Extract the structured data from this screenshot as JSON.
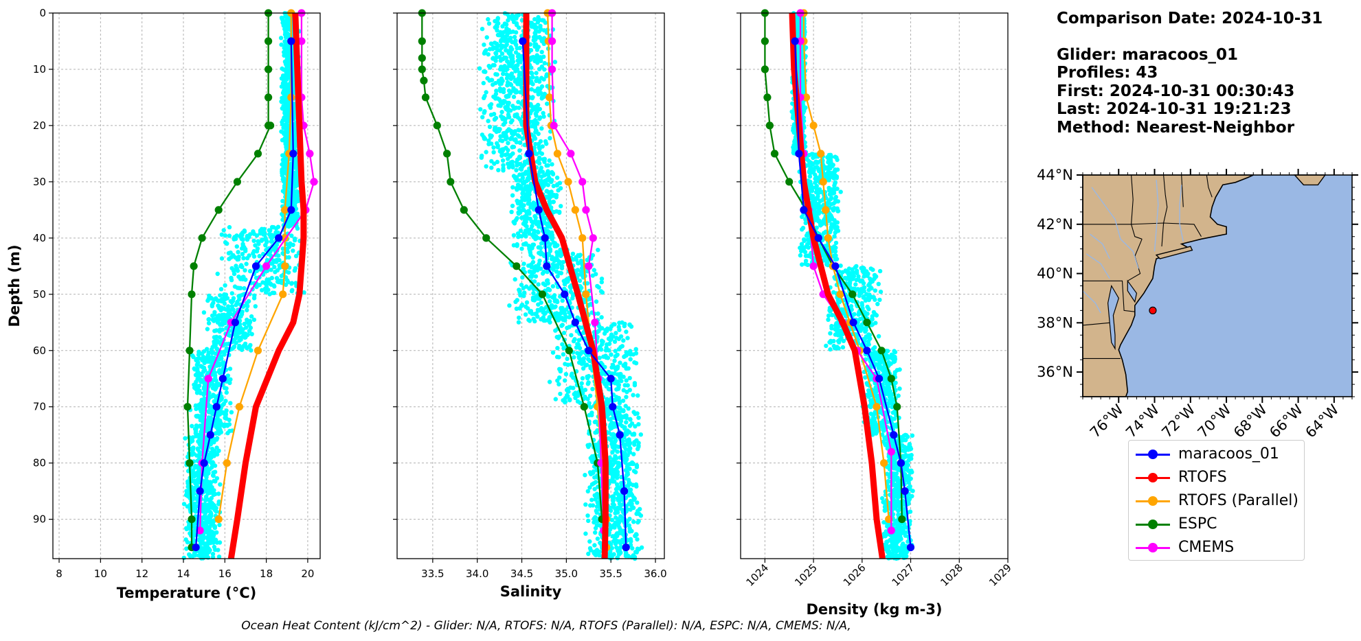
{
  "chart_data": [
    {
      "type": "line",
      "panel": "temperature",
      "xlabel": "Temperature (°C)",
      "ylabel": "Depth (m)",
      "xlim": [
        7.7,
        20.6
      ],
      "ylim": [
        97,
        0
      ],
      "xticks": [
        8,
        10,
        12,
        14,
        16,
        18,
        20
      ],
      "yticks": [
        0,
        10,
        20,
        30,
        40,
        50,
        60,
        70,
        80,
        90
      ],
      "grid": true,
      "series": [
        {
          "name": "maracoos_01",
          "color": "#0000ff",
          "x": [
            19.2,
            19.3,
            19.2,
            18.6,
            17.5,
            16.5,
            15.9,
            15.6,
            15.3,
            15.0,
            14.8,
            14.6
          ],
          "y": [
            5,
            25,
            35,
            40,
            45,
            55,
            65,
            70,
            75,
            80,
            85,
            95
          ]
        },
        {
          "name": "RTOFS",
          "color": "#ff0000",
          "x": [
            19.4,
            19.5,
            19.6,
            19.7,
            19.8,
            19.8,
            19.7,
            19.6,
            19.3,
            18.6,
            17.5,
            17.0,
            16.8,
            16.6,
            16.3
          ],
          "y": [
            0,
            10,
            20,
            30,
            35,
            40,
            45,
            50,
            55,
            60,
            70,
            80,
            85,
            90,
            97
          ]
        },
        {
          "name": "RTOFS (Parallel)",
          "color": "#ffa500",
          "x": [
            19.2,
            19.2,
            19.2,
            19.1,
            18.9,
            18.9,
            18.9,
            18.8,
            17.6,
            16.7,
            16.1,
            15.7
          ],
          "y": [
            0,
            5,
            15,
            25,
            35,
            40,
            45,
            50,
            60,
            70,
            80,
            90
          ]
        },
        {
          "name": "ESPC",
          "color": "#008000",
          "x": [
            18.1,
            18.1,
            18.1,
            18.1,
            18.1,
            18.2,
            17.6,
            16.6,
            15.7,
            14.9,
            14.5,
            14.4,
            14.3,
            14.2,
            14.3,
            14.4,
            14.4
          ],
          "y": [
            0,
            5,
            10,
            15,
            20,
            20,
            25,
            30,
            35,
            40,
            45,
            50,
            60,
            70,
            80,
            90,
            95
          ]
        },
        {
          "name": "CMEMS",
          "color": "#ff00ff",
          "x": [
            19.7,
            19.7,
            19.7,
            19.8,
            20.1,
            20.3,
            19.9,
            18.0,
            16.3,
            15.2,
            14.9,
            14.8
          ],
          "y": [
            0,
            5,
            15,
            20,
            25,
            30,
            35,
            45,
            55,
            65,
            80,
            92
          ]
        }
      ]
    },
    {
      "type": "line",
      "panel": "salinity",
      "xlabel": "Salinity",
      "xlim": [
        33.1,
        36.1
      ],
      "ylim": [
        97,
        0
      ],
      "xticks": [
        33.5,
        34.0,
        34.5,
        35.0,
        35.5,
        36.0
      ],
      "yticks": [
        0,
        10,
        20,
        30,
        40,
        50,
        60,
        70,
        80,
        90
      ],
      "grid": true,
      "series": [
        {
          "name": "maracoos_01",
          "color": "#0000ff",
          "x": [
            34.51,
            34.58,
            34.69,
            34.76,
            34.78,
            34.98,
            35.1,
            35.25,
            35.5,
            35.52,
            35.6,
            35.65,
            35.67
          ],
          "y": [
            5,
            25,
            35,
            40,
            45,
            50,
            55,
            60,
            65,
            70,
            75,
            85,
            95
          ]
        },
        {
          "name": "RTOFS",
          "color": "#ff0000",
          "x": [
            34.55,
            34.55,
            34.55,
            34.6,
            34.65,
            34.78,
            34.95,
            35.13,
            35.3,
            35.4,
            35.44,
            35.44,
            35.43
          ],
          "y": [
            0,
            10,
            20,
            25,
            30,
            35,
            40,
            50,
            60,
            70,
            80,
            90,
            97
          ]
        },
        {
          "name": "RTOFS (Parallel)",
          "color": "#ffa500",
          "x": [
            34.79,
            34.8,
            34.81,
            34.83,
            34.9,
            35.02,
            35.1,
            35.18,
            35.22,
            35.28,
            35.35,
            35.4,
            35.45,
            35.45
          ],
          "y": [
            0,
            5,
            15,
            20,
            25,
            30,
            35,
            40,
            50,
            60,
            70,
            80,
            90,
            95
          ]
        },
        {
          "name": "ESPC",
          "color": "#008000",
          "x": [
            33.38,
            33.38,
            33.38,
            33.38,
            33.4,
            33.42,
            33.55,
            33.66,
            33.7,
            33.85,
            34.1,
            34.44,
            34.73,
            35.03,
            35.2,
            35.35,
            35.4
          ],
          "y": [
            0,
            5,
            8,
            10,
            12,
            15,
            20,
            25,
            30,
            35,
            40,
            45,
            50,
            60,
            70,
            80,
            90
          ]
        },
        {
          "name": "CMEMS",
          "color": "#ff00ff",
          "x": [
            34.84,
            34.84,
            34.84,
            34.86,
            35.05,
            35.18,
            35.22,
            35.3,
            35.25,
            35.32,
            35.36,
            35.39,
            35.42
          ],
          "y": [
            0,
            5,
            10,
            20,
            25,
            30,
            35,
            40,
            45,
            55,
            65,
            80,
            92
          ]
        }
      ]
    },
    {
      "type": "line",
      "panel": "density",
      "xlabel": "Density (kg m-3)",
      "xlim": [
        1023.5,
        1029.0
      ],
      "ylim": [
        97,
        0
      ],
      "xticks": [
        1024,
        1025,
        1026,
        1027,
        1028,
        1029
      ],
      "yticks": [
        0,
        10,
        20,
        30,
        40,
        50,
        60,
        70,
        80,
        90
      ],
      "grid": true,
      "series": [
        {
          "name": "maracoos_01",
          "color": "#0000ff",
          "x": [
            1024.62,
            1024.7,
            1024.8,
            1025.1,
            1025.45,
            1025.82,
            1026.1,
            1026.35,
            1026.65,
            1026.8,
            1026.88,
            1027.0
          ],
          "y": [
            5,
            25,
            35,
            40,
            45,
            55,
            60,
            65,
            75,
            80,
            85,
            95
          ]
        },
        {
          "name": "RTOFS",
          "color": "#ff0000",
          "x": [
            1024.56,
            1024.6,
            1024.7,
            1024.8,
            1025.0,
            1025.3,
            1025.6,
            1025.85,
            1026.05,
            1026.2,
            1026.3,
            1026.42
          ],
          "y": [
            0,
            10,
            20,
            30,
            40,
            50,
            55,
            60,
            70,
            80,
            90,
            97
          ]
        },
        {
          "name": "RTOFS (Parallel)",
          "color": "#ffa500",
          "x": [
            1024.8,
            1024.8,
            1024.85,
            1025.0,
            1025.15,
            1025.2,
            1025.25,
            1025.3,
            1025.4,
            1025.55,
            1025.75,
            1025.95,
            1026.3,
            1026.45,
            1026.55
          ],
          "y": [
            0,
            5,
            15,
            20,
            25,
            30,
            35,
            40,
            45,
            50,
            55,
            60,
            70,
            80,
            90
          ]
        },
        {
          "name": "ESPC",
          "color": "#008000",
          "x": [
            1024.0,
            1024.0,
            1024.0,
            1024.05,
            1024.1,
            1024.2,
            1024.5,
            1024.85,
            1025.1,
            1025.4,
            1025.8,
            1026.1,
            1026.4,
            1026.6,
            1026.72,
            1026.8,
            1026.82
          ],
          "y": [
            0,
            5,
            10,
            15,
            20,
            25,
            30,
            35,
            40,
            45,
            50,
            55,
            60,
            65,
            70,
            80,
            90
          ]
        },
        {
          "name": "CMEMS",
          "color": "#ff00ff",
          "x": [
            1024.73,
            1024.73,
            1024.73,
            1024.8,
            1024.9,
            1025.0,
            1025.2,
            1025.6,
            1025.9,
            1026.3,
            1026.6,
            1026.6
          ],
          "y": [
            0,
            5,
            15,
            25,
            35,
            45,
            50,
            55,
            60,
            65,
            78,
            92
          ]
        }
      ]
    }
  ],
  "info": {
    "comparison_date": "Comparison Date: 2024-10-31",
    "glider": "Glider: maracoos_01",
    "profiles": "Profiles: 43",
    "first": "First: 2024-10-31 00:30:43",
    "last": "Last: 2024-10-31 19:21:23",
    "method": "Method: Nearest-Neighbor"
  },
  "map": {
    "lon_range": [
      -78,
      -63
    ],
    "lat_range": [
      35,
      44
    ],
    "lat_ticks": [
      "44°N",
      "42°N",
      "40°N",
      "38°N",
      "36°N"
    ],
    "lon_ticks": [
      "76°W",
      "74°W",
      "72°W",
      "70°W",
      "68°W",
      "66°W",
      "64°W"
    ],
    "glider_position": {
      "lon": -74.1,
      "lat": 38.5
    },
    "ocean_color": "#9ab8e4",
    "land_color": "#d2b48c",
    "marker_color": "#ff0000"
  },
  "legend": [
    {
      "label": "maracoos_01",
      "color": "#0000ff"
    },
    {
      "label": "RTOFS",
      "color": "#ff0000"
    },
    {
      "label": "RTOFS (Parallel)",
      "color": "#ffa500"
    },
    {
      "label": "ESPC",
      "color": "#008000"
    },
    {
      "label": "CMEMS",
      "color": "#ff00ff"
    }
  ],
  "footer": "Ocean Heat Content (kJ/cm^2) - Glider: N/A,  RTOFS: N/A,  RTOFS (Parallel): N/A,  ESPC: N/A,  CMEMS: N/A,"
}
